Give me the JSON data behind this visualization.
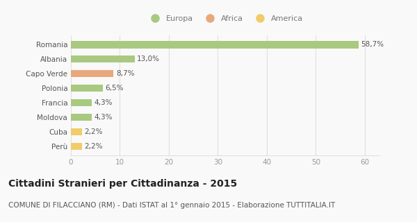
{
  "categories": [
    "Perù",
    "Cuba",
    "Moldova",
    "Francia",
    "Polonia",
    "Capo Verde",
    "Albania",
    "Romania"
  ],
  "values": [
    2.2,
    2.2,
    4.3,
    4.3,
    6.5,
    8.7,
    13.0,
    58.7
  ],
  "labels": [
    "2,2%",
    "2,2%",
    "4,3%",
    "4,3%",
    "6,5%",
    "8,7%",
    "13,0%",
    "58,7%"
  ],
  "bar_colors": [
    "#f0cc6a",
    "#f0cc6a",
    "#a8c97f",
    "#a8c97f",
    "#a8c97f",
    "#e8a87c",
    "#a8c97f",
    "#a8c97f"
  ],
  "legend": [
    {
      "label": "Europa",
      "color": "#a8c97f"
    },
    {
      "label": "Africa",
      "color": "#e8a87c"
    },
    {
      "label": "America",
      "color": "#f0cc6a"
    }
  ],
  "xlim": [
    0,
    63
  ],
  "xticks": [
    0,
    10,
    20,
    30,
    40,
    50,
    60
  ],
  "title": "Cittadini Stranieri per Cittadinanza - 2015",
  "subtitle": "COMUNE DI FILACCIANO (RM) - Dati ISTAT al 1° gennaio 2015 - Elaborazione TUTTITALIA.IT",
  "background_color": "#f9f9f9",
  "grid_color": "#e0e0e0",
  "title_fontsize": 10,
  "subtitle_fontsize": 7.5,
  "label_fontsize": 7.5,
  "tick_fontsize": 7.5,
  "bar_height": 0.5
}
